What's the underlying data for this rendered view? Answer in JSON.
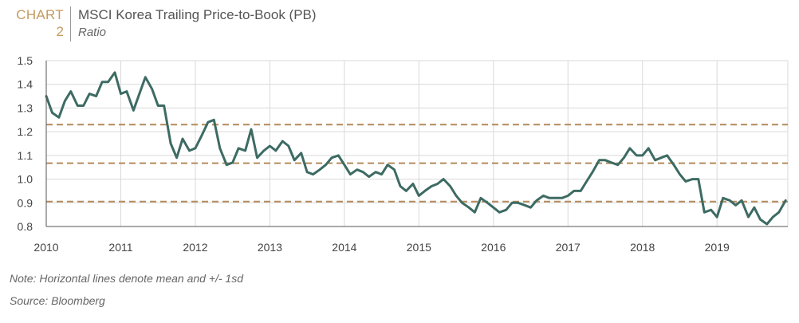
{
  "header": {
    "chart_word": "CHART",
    "chart_number": "2",
    "title": "MSCI Korea Trailing Price-to-Book (PB)",
    "subtitle": "Ratio"
  },
  "footer": {
    "note": "Note: Horizontal lines denote mean and +/- 1sd",
    "source": "Source: Bloomberg"
  },
  "colors": {
    "line": "#3d6b63",
    "reference_lines": "#b58a5a",
    "grid": "#d9d9d9",
    "axis": "#555555",
    "chart_label": "#c49a5f"
  },
  "chart_data": {
    "type": "line",
    "title": "MSCI Korea Trailing Price-to-Book (PB)",
    "subtitle": "Ratio",
    "xlabel": "",
    "ylabel": "",
    "xlim": [
      2010,
      2019.95
    ],
    "ylim": [
      0.8,
      1.5
    ],
    "y_ticks": [
      "1.5",
      "1.4",
      "1.3",
      "1.2",
      "1.1",
      "1.0",
      "0.9",
      "0.8"
    ],
    "x_ticks": [
      "2010",
      "2011",
      "2012",
      "2013",
      "2014",
      "2015",
      "2016",
      "2017",
      "2018",
      "2019"
    ],
    "grid": true,
    "reference_lines": [
      1.23,
      1.067,
      0.905
    ],
    "series": [
      {
        "name": "",
        "x": [
          2010.0,
          2010.08,
          2010.17,
          2010.25,
          2010.33,
          2010.42,
          2010.5,
          2010.58,
          2010.67,
          2010.75,
          2010.83,
          2010.92,
          2011.0,
          2011.08,
          2011.17,
          2011.25,
          2011.33,
          2011.42,
          2011.5,
          2011.58,
          2011.67,
          2011.75,
          2011.83,
          2011.92,
          2012.0,
          2012.08,
          2012.17,
          2012.25,
          2012.33,
          2012.42,
          2012.5,
          2012.58,
          2012.67,
          2012.75,
          2012.83,
          2012.92,
          2013.0,
          2013.08,
          2013.17,
          2013.25,
          2013.33,
          2013.42,
          2013.5,
          2013.58,
          2013.67,
          2013.75,
          2013.83,
          2013.92,
          2014.0,
          2014.08,
          2014.17,
          2014.25,
          2014.33,
          2014.42,
          2014.5,
          2014.58,
          2014.67,
          2014.75,
          2014.83,
          2014.92,
          2015.0,
          2015.08,
          2015.17,
          2015.25,
          2015.33,
          2015.42,
          2015.5,
          2015.58,
          2015.67,
          2015.75,
          2015.83,
          2015.92,
          2016.0,
          2016.08,
          2016.17,
          2016.25,
          2016.33,
          2016.42,
          2016.5,
          2016.58,
          2016.67,
          2016.75,
          2016.83,
          2016.92,
          2017.0,
          2017.08,
          2017.17,
          2017.25,
          2017.33,
          2017.42,
          2017.5,
          2017.58,
          2017.67,
          2017.75,
          2017.83,
          2017.92,
          2018.0,
          2018.08,
          2018.17,
          2018.25,
          2018.33,
          2018.42,
          2018.5,
          2018.58,
          2018.67,
          2018.75,
          2018.83,
          2018.92,
          2019.0,
          2019.08,
          2019.17,
          2019.25,
          2019.33,
          2019.42,
          2019.5,
          2019.58,
          2019.67,
          2019.75,
          2019.83,
          2019.92
        ],
        "values": [
          1.35,
          1.28,
          1.26,
          1.33,
          1.37,
          1.31,
          1.31,
          1.36,
          1.35,
          1.41,
          1.41,
          1.45,
          1.36,
          1.37,
          1.29,
          1.36,
          1.43,
          1.38,
          1.31,
          1.31,
          1.15,
          1.09,
          1.17,
          1.12,
          1.13,
          1.18,
          1.24,
          1.25,
          1.13,
          1.06,
          1.07,
          1.13,
          1.12,
          1.21,
          1.09,
          1.12,
          1.14,
          1.12,
          1.16,
          1.14,
          1.08,
          1.11,
          1.03,
          1.02,
          1.04,
          1.06,
          1.09,
          1.1,
          1.06,
          1.02,
          1.04,
          1.03,
          1.01,
          1.03,
          1.02,
          1.06,
          1.04,
          0.97,
          0.95,
          0.98,
          0.93,
          0.95,
          0.97,
          0.98,
          1.0,
          0.97,
          0.93,
          0.9,
          0.88,
          0.86,
          0.92,
          0.9,
          0.88,
          0.86,
          0.87,
          0.9,
          0.9,
          0.89,
          0.88,
          0.91,
          0.93,
          0.92,
          0.92,
          0.92,
          0.93,
          0.95,
          0.95,
          0.99,
          1.03,
          1.08,
          1.08,
          1.07,
          1.06,
          1.09,
          1.13,
          1.1,
          1.1,
          1.13,
          1.08,
          1.09,
          1.1,
          1.06,
          1.02,
          0.99,
          1.0,
          1.0,
          0.86,
          0.87,
          0.84,
          0.92,
          0.91,
          0.89,
          0.91,
          0.84,
          0.88,
          0.83,
          0.81,
          0.84,
          0.86,
          0.91
        ]
      }
    ]
  }
}
